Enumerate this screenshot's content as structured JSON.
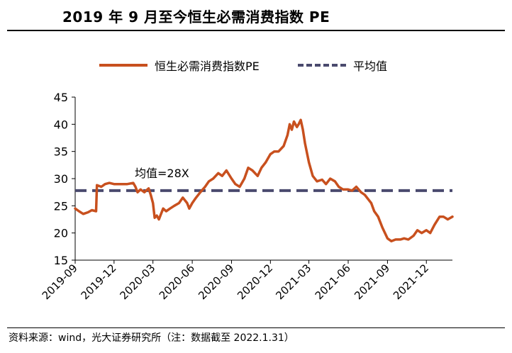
{
  "title": "2019 年 9 月至今恒生必需消费指数 PE",
  "source": "资料来源：wind，光大证券研究所（注：数据截至 2022.1.31）",
  "legend": {
    "series_label": "恒生必需消费指数PE",
    "avg_label": "平均值"
  },
  "annotation": "均值=28X",
  "chart_data": {
    "type": "line",
    "title": "2019 年 9 月至今恒生必需消费指数 PE",
    "xlabel": "",
    "ylabel": "",
    "ylim": [
      15,
      45
    ],
    "yticks": [
      15,
      20,
      25,
      30,
      35,
      40,
      45
    ],
    "xlim": [
      "2019-09-01",
      "2022-01-31"
    ],
    "xticks": [
      "2019-09",
      "2019-12",
      "2020-03",
      "2020-06",
      "2020-09",
      "2020-12",
      "2021-03",
      "2021-06",
      "2021-09",
      "2021-12"
    ],
    "grid": false,
    "legend_position": "top",
    "colors": {
      "series": "#c8501e",
      "average": "#4a4a6e"
    },
    "series": [
      {
        "name": "恒生必需消费指数PE",
        "style": "solid",
        "x": [
          "2019-09-01",
          "2019-09-10",
          "2019-09-20",
          "2019-10-01",
          "2019-10-10",
          "2019-10-20",
          "2019-10-22",
          "2019-11-01",
          "2019-11-10",
          "2019-11-20",
          "2019-12-01",
          "2019-12-15",
          "2020-01-01",
          "2020-01-15",
          "2020-01-20",
          "2020-01-25",
          "2020-02-01",
          "2020-02-10",
          "2020-02-20",
          "2020-02-25",
          "2020-03-01",
          "2020-03-05",
          "2020-03-10",
          "2020-03-15",
          "2020-03-20",
          "2020-03-25",
          "2020-04-01",
          "2020-04-10",
          "2020-04-20",
          "2020-05-01",
          "2020-05-10",
          "2020-05-20",
          "2020-05-25",
          "2020-06-01",
          "2020-06-10",
          "2020-06-20",
          "2020-07-01",
          "2020-07-10",
          "2020-07-20",
          "2020-08-01",
          "2020-08-10",
          "2020-08-20",
          "2020-09-01",
          "2020-09-10",
          "2020-09-20",
          "2020-10-01",
          "2020-10-10",
          "2020-10-20",
          "2020-11-01",
          "2020-11-10",
          "2020-11-20",
          "2020-12-01",
          "2020-12-10",
          "2020-12-20",
          "2021-01-01",
          "2021-01-10",
          "2021-01-15",
          "2021-01-20",
          "2021-01-25",
          "2021-02-01",
          "2021-02-05",
          "2021-02-10",
          "2021-02-15",
          "2021-02-20",
          "2021-03-01",
          "2021-03-10",
          "2021-03-20",
          "2021-04-01",
          "2021-04-10",
          "2021-04-20",
          "2021-05-01",
          "2021-05-10",
          "2021-05-20",
          "2021-06-01",
          "2021-06-10",
          "2021-06-20",
          "2021-07-01",
          "2021-07-10",
          "2021-07-20",
          "2021-07-25",
          "2021-08-01",
          "2021-08-10",
          "2021-08-20",
          "2021-09-01",
          "2021-09-10",
          "2021-09-20",
          "2021-10-01",
          "2021-10-10",
          "2021-10-20",
          "2021-11-01",
          "2021-11-10",
          "2021-11-20",
          "2021-12-01",
          "2021-12-10",
          "2021-12-20",
          "2022-01-01",
          "2022-01-10",
          "2022-01-20",
          "2022-01-31"
        ],
        "values": [
          24.5,
          24.0,
          23.5,
          23.8,
          24.2,
          24.0,
          28.8,
          28.5,
          29.0,
          29.2,
          29.0,
          29.0,
          29.0,
          29.2,
          28.5,
          27.5,
          28.0,
          27.5,
          28.2,
          27.0,
          25.5,
          22.8,
          23.2,
          22.5,
          23.5,
          24.5,
          24.0,
          24.5,
          25.0,
          25.5,
          26.5,
          25.5,
          24.5,
          25.5,
          26.5,
          27.5,
          28.5,
          29.5,
          30.0,
          31.0,
          30.5,
          31.5,
          30.0,
          29.0,
          28.5,
          30.0,
          32.0,
          31.5,
          30.5,
          32.0,
          33.0,
          34.5,
          35.0,
          35.0,
          36.0,
          38.0,
          40.0,
          39.0,
          40.5,
          39.5,
          40.0,
          40.8,
          39.0,
          36.5,
          33.0,
          30.5,
          29.5,
          29.8,
          29.0,
          30.0,
          29.5,
          28.5,
          28.0,
          28.0,
          27.8,
          28.5,
          27.5,
          27.0,
          26.0,
          25.5,
          24.0,
          23.0,
          21.0,
          19.0,
          18.5,
          18.8,
          18.8,
          19.0,
          18.8,
          19.5,
          20.5,
          20.0,
          20.5,
          20.0,
          21.5,
          23.0,
          23.0,
          22.5,
          23.0
        ]
      },
      {
        "name": "平均值",
        "style": "dashed",
        "x": [
          "2019-09-01",
          "2022-01-31"
        ],
        "values": [
          27.8,
          27.8
        ]
      }
    ]
  }
}
